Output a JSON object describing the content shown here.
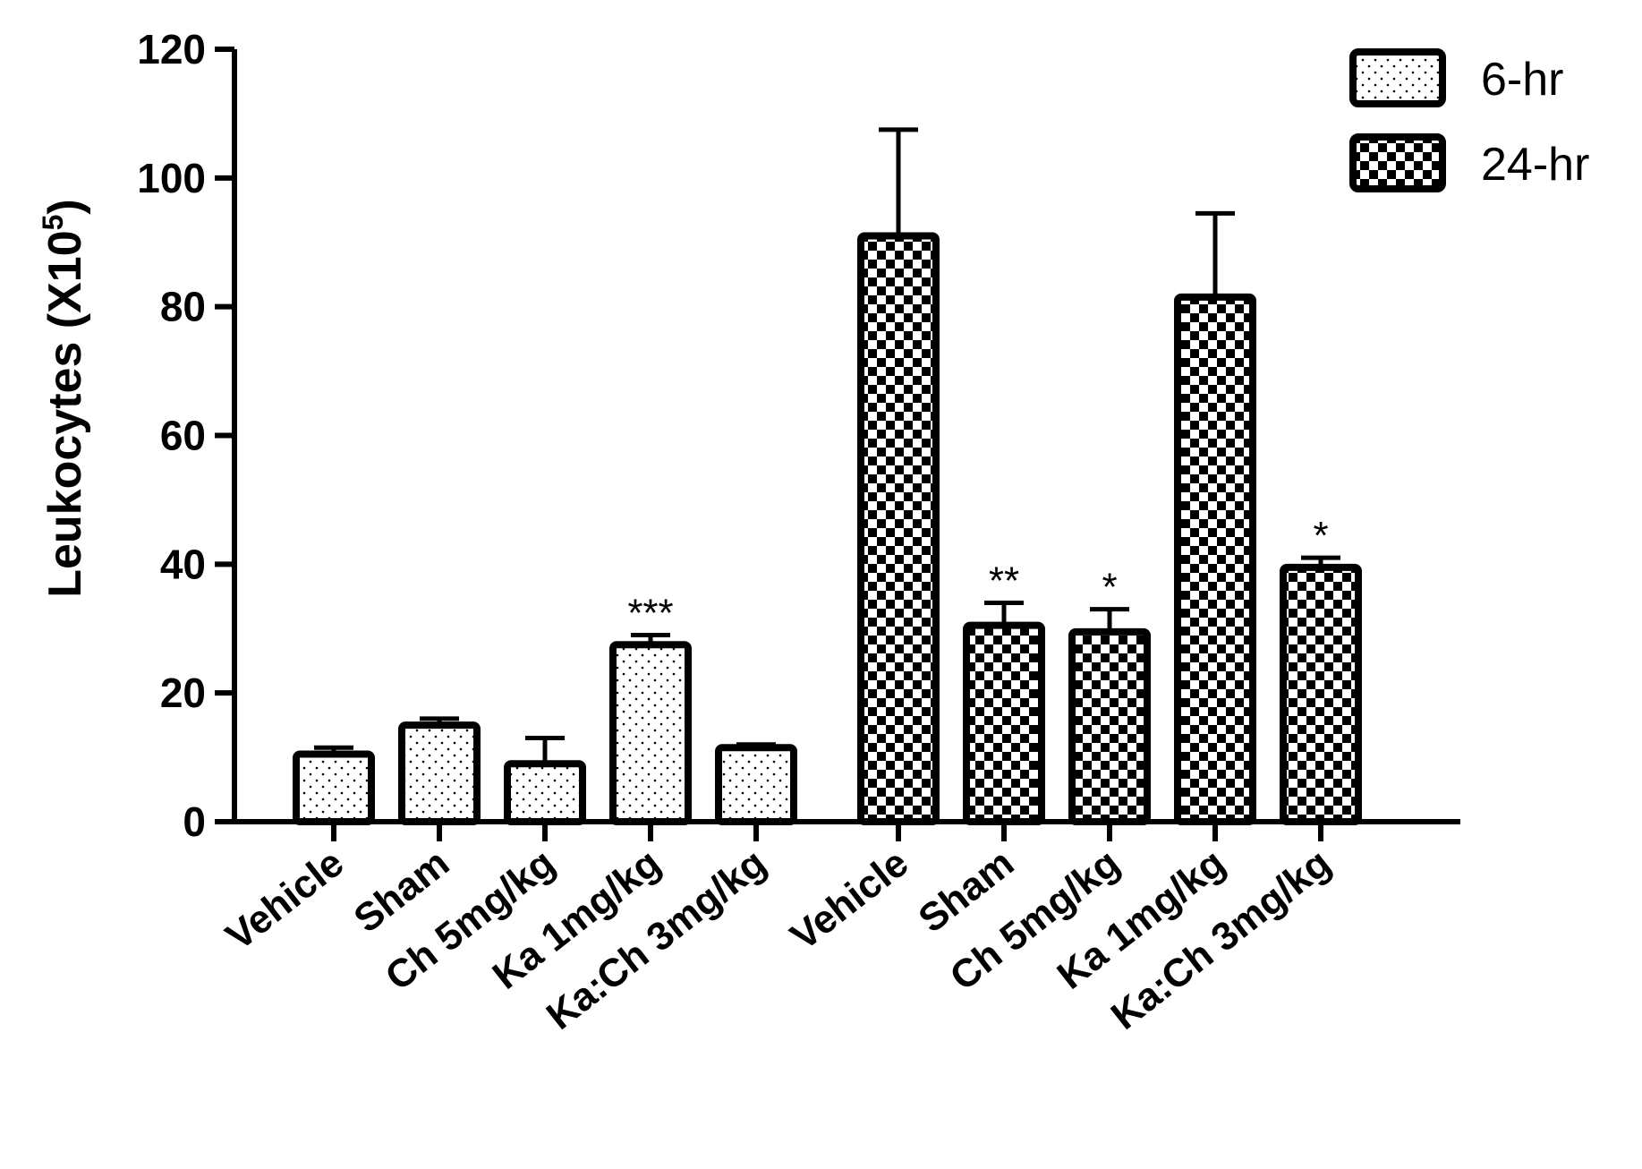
{
  "chart_data": {
    "type": "bar",
    "title": "",
    "xlabel": "",
    "ylabel": "Leukocytes (X10",
    "ylabel_exponent": "5",
    "ylabel_close": ")",
    "ylim": [
      0,
      120
    ],
    "yticks": [
      0,
      20,
      40,
      60,
      80,
      100,
      120
    ],
    "legend_position": "top-right",
    "series": [
      {
        "name": "6-hr",
        "pattern": "dotted",
        "categories": [
          "Vehicle",
          "Sham",
          "Ch 5mg/kg",
          "Ka 1mg/kg",
          "Ka:Ch 3mg/kg"
        ],
        "values": [
          10.5,
          15,
          9,
          27.5,
          11.5
        ],
        "errors": [
          1,
          1,
          4,
          1.5,
          0.5
        ],
        "annotations": [
          "",
          "",
          "",
          "***",
          ""
        ]
      },
      {
        "name": "24-hr",
        "pattern": "checkered",
        "categories": [
          "Vehicle",
          "Sham",
          "Ch 5mg/kg",
          "Ka 1mg/kg",
          "Ka:Ch 3mg/kg"
        ],
        "values": [
          91,
          30.5,
          29.5,
          81.5,
          39.5
        ],
        "errors": [
          16.5,
          3.5,
          3.5,
          13,
          1.5
        ],
        "annotations": [
          "",
          "**",
          "*",
          "",
          "*"
        ]
      }
    ]
  },
  "colors": {
    "ink": "#000000",
    "background": "#ffffff"
  }
}
